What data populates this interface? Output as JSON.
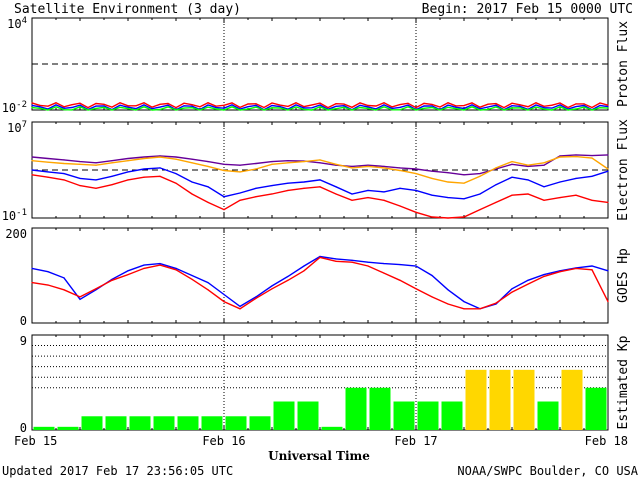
{
  "header": {
    "title": "Satellite Environment (3 day)",
    "begin": "Begin:  2017 Feb 15 0000 UTC"
  },
  "footer": {
    "updated": "Updated 2017 Feb 17 23:56:05 UTC",
    "credit": "NOAA/SWPC Boulder, CO USA"
  },
  "colors": {
    "red": "#ff0000",
    "blue": "#0000ff",
    "green": "#00ff00",
    "orange": "#ffa500",
    "purple": "#660099",
    "kp_green": "#00ff00",
    "kp_yellow": "#ffd700"
  },
  "chart_data": [
    {
      "type": "line",
      "name": "proton",
      "ylabel": "Proton Flux",
      "yscale": "log",
      "ylim": [
        0.01,
        10000
      ],
      "tick_labels": [
        {
          "base": "10",
          "exp": "4"
        },
        {
          "base": "10",
          "exp": "-2"
        }
      ],
      "threshold": 10,
      "series": [
        {
          "color": "red",
          "level": 0.022
        },
        {
          "color": "blue",
          "level": 0.016
        },
        {
          "color": "green",
          "level": 0.012
        }
      ]
    },
    {
      "type": "line",
      "name": "electron",
      "ylabel": "Electron Flux",
      "yscale": "log",
      "ylim": [
        0.1,
        10000000
      ],
      "tick_labels": [
        {
          "base": "10",
          "exp": "7"
        },
        {
          "base": "10",
          "exp": "-1"
        }
      ],
      "threshold": 1000,
      "x": [
        0,
        2,
        4,
        6,
        8,
        10,
        12,
        14,
        16,
        18,
        20,
        22,
        24,
        26,
        28,
        30,
        32,
        34,
        36,
        38,
        40,
        42,
        44,
        46,
        48,
        50,
        52,
        54,
        56,
        58,
        60,
        62,
        64,
        66,
        68,
        70,
        72
      ],
      "series": [
        {
          "color": "purple",
          "values": [
            12000,
            9000,
            7000,
            5000,
            4000,
            6000,
            9000,
            12000,
            15000,
            12000,
            8000,
            5000,
            3000,
            2500,
            3500,
            5000,
            6000,
            5500,
            4000,
            2500,
            2000,
            2500,
            2000,
            1500,
            1200,
            800,
            600,
            400,
            500,
            1200,
            3000,
            2000,
            2500,
            15000,
            18000,
            16000,
            18000
          ]
        },
        {
          "color": "orange",
          "values": [
            6000,
            4500,
            3500,
            3000,
            2500,
            4000,
            6000,
            9000,
            12000,
            8000,
            4000,
            2000,
            900,
            700,
            1200,
            3000,
            4000,
            5000,
            7000,
            3000,
            1500,
            2000,
            1500,
            900,
            500,
            200,
            100,
            80,
            300,
            1500,
            5000,
            2500,
            4000,
            12000,
            13000,
            10000,
            1200
          ]
        },
        {
          "color": "blue",
          "values": [
            1000,
            700,
            500,
            200,
            150,
            300,
            700,
            1200,
            1500,
            500,
            100,
            40,
            6,
            12,
            30,
            50,
            80,
            100,
            150,
            40,
            10,
            20,
            15,
            30,
            20,
            8,
            5,
            4,
            10,
            60,
            250,
            150,
            40,
            100,
            200,
            300,
            800
          ]
        },
        {
          "color": "red",
          "values": [
            400,
            250,
            150,
            50,
            30,
            60,
            150,
            250,
            300,
            80,
            10,
            2,
            0.5,
            3,
            6,
            10,
            20,
            30,
            40,
            10,
            3,
            5,
            3,
            1,
            0.3,
            0.12,
            0.1,
            0.12,
            0.5,
            2,
            8,
            10,
            3,
            5,
            8,
            3,
            2
          ]
        }
      ]
    },
    {
      "type": "line",
      "name": "goes_hp",
      "ylabel": "GOES Hp",
      "ylim": [
        0,
        200
      ],
      "tick_labels": [
        "200",
        "0"
      ],
      "x": [
        0,
        2,
        4,
        6,
        8,
        10,
        12,
        14,
        16,
        18,
        20,
        22,
        24,
        26,
        28,
        30,
        32,
        34,
        36,
        38,
        40,
        42,
        44,
        46,
        48,
        50,
        52,
        54,
        56,
        58,
        60,
        62,
        64,
        66,
        68,
        70,
        72
      ],
      "series": [
        {
          "color": "blue",
          "values": [
            115,
            108,
            95,
            50,
            70,
            92,
            110,
            122,
            125,
            115,
            100,
            85,
            60,
            35,
            55,
            78,
            98,
            120,
            140,
            135,
            132,
            128,
            125,
            123,
            120,
            100,
            70,
            45,
            30,
            40,
            72,
            90,
            102,
            110,
            116,
            120,
            110
          ]
        },
        {
          "color": "red",
          "values": [
            85,
            80,
            70,
            55,
            72,
            90,
            102,
            115,
            122,
            112,
            92,
            70,
            45,
            30,
            52,
            72,
            90,
            110,
            138,
            130,
            128,
            120,
            105,
            90,
            72,
            55,
            40,
            30,
            30,
            42,
            65,
            82,
            98,
            108,
            115,
            112,
            45
          ]
        }
      ]
    },
    {
      "type": "bar",
      "name": "kp",
      "ylabel": "Estimated Kp",
      "ylim": [
        0,
        9
      ],
      "tick_labels": [
        "9",
        "0"
      ],
      "dotted_levels": [
        4,
        5,
        6,
        7,
        8
      ],
      "bar_hours": 3,
      "values": [
        0.3,
        0.3,
        1.3,
        1.3,
        1.3,
        1.3,
        1.3,
        1.3,
        1.3,
        1.3,
        2.7,
        2.7,
        0.3,
        4.0,
        4.0,
        2.7,
        2.7,
        2.7,
        5.7,
        5.7,
        5.7,
        2.7,
        5.7,
        4.0
      ],
      "storm_threshold": 5
    }
  ],
  "xaxis": {
    "title": "Universal Time",
    "labels": [
      "Feb 15",
      "Feb 16",
      "Feb 17",
      "Feb 18"
    ]
  }
}
